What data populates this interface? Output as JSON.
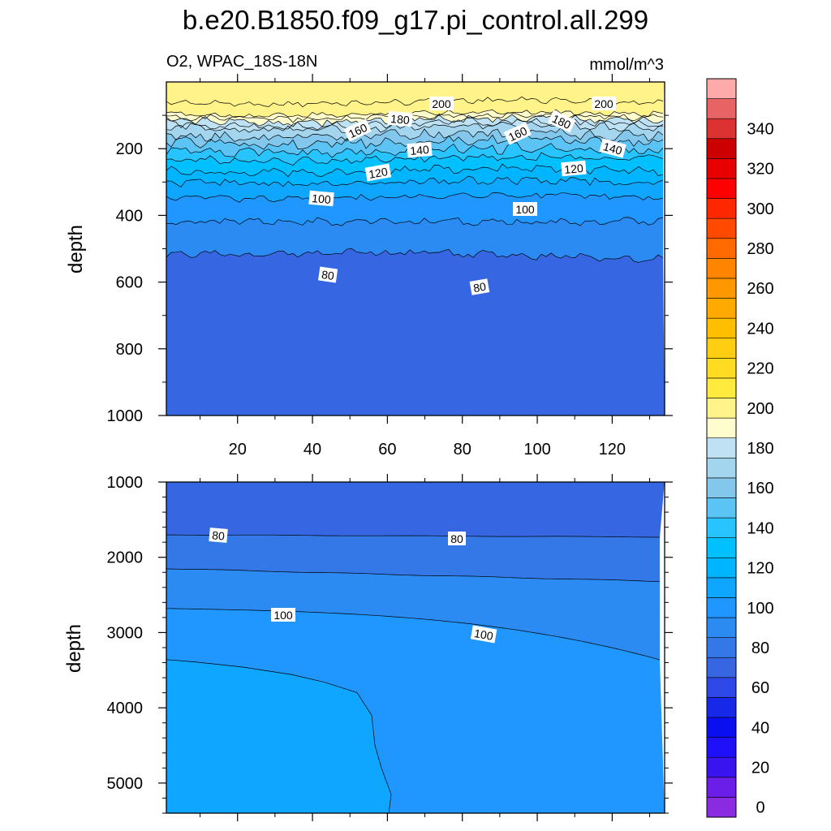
{
  "chart_data": {
    "type": "heatmap",
    "title": "b.e20.B1850.f09_g17.pi_control.all.299",
    "subtitle_left": "O2, WPAC_18S-18N",
    "subtitle_right": "mmol/m^3",
    "ylabel": "depth",
    "colorbar": {
      "levels": [
        0,
        10,
        20,
        30,
        40,
        50,
        60,
        70,
        80,
        90,
        100,
        110,
        120,
        130,
        140,
        150,
        160,
        170,
        180,
        190,
        200,
        210,
        220,
        230,
        240,
        250,
        260,
        270,
        280,
        290,
        300,
        310,
        320,
        330,
        340,
        350
      ],
      "tick_labels": [
        "0",
        "20",
        "40",
        "60",
        "80",
        "100",
        "120",
        "140",
        "160",
        "180",
        "200",
        "220",
        "240",
        "260",
        "280",
        "300",
        "320",
        "340"
      ],
      "colors": [
        "#8a2be2",
        "#6a1ee8",
        "#3a14ef",
        "#1e10f8",
        "#0a0ff0",
        "#1728e8",
        "#2d48e6",
        "#3766e2",
        "#3478e8",
        "#2b8bf2",
        "#1f97ff",
        "#0fa6ff",
        "#00b5ff",
        "#00c0ff",
        "#27c4ff",
        "#5cc4f4",
        "#83c8ec",
        "#a4d5ee",
        "#bee2f4",
        "#fffccd",
        "#fff38a",
        "#ffea3d",
        "#ffdc21",
        "#ffce12",
        "#ffbe00",
        "#ffaa00",
        "#ff9800",
        "#ff8400",
        "#ff6a00",
        "#ff4a00",
        "#ff2700",
        "#ff0000",
        "#e80000",
        "#cd0000",
        "#dd3232",
        "#e86464",
        "#ffaaaa"
      ]
    },
    "panels": [
      {
        "name": "upper",
        "x_ticks": [
          20,
          40,
          60,
          80,
          100,
          120
        ],
        "xlim": [
          1,
          134
        ],
        "y_ticks": [
          200,
          400,
          600,
          800,
          1000
        ],
        "ylim": [
          1000,
          0
        ],
        "contour_labels": [
          "200",
          "200",
          "180",
          "180",
          "160",
          "160",
          "140",
          "140",
          "120",
          "120",
          "100",
          "100",
          "80",
          "80"
        ]
      },
      {
        "name": "lower",
        "y_ticks": [
          1000,
          2000,
          3000,
          4000,
          5000
        ],
        "ylim": [
          5400,
          1000
        ],
        "contour_labels": [
          "80",
          "80",
          "100",
          "100"
        ]
      }
    ]
  }
}
